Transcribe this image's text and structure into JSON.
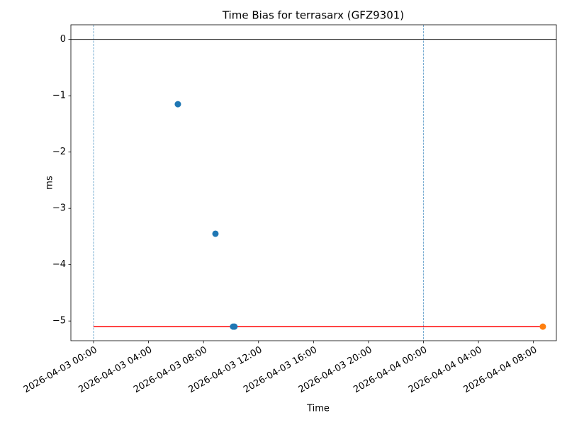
{
  "chart_data": {
    "type": "scatter",
    "title": "Time Bias for terrasarx (GFZ9301)",
    "x_label": "Time",
    "y_label": "ms",
    "xlim": [
      "2026-04-02 22:21",
      "2026-04-04 09:40"
    ],
    "ylim": [
      -5.35,
      0.26
    ],
    "xticks": [
      "2026-04-03 00:00",
      "2026-04-03 04:00",
      "2026-04-03 08:00",
      "2026-04-03 12:00",
      "2026-04-03 16:00",
      "2026-04-03 20:00",
      "2026-04-04 00:00",
      "2026-04-04 04:00",
      "2026-04-04 08:00"
    ],
    "yticks": [
      {
        "value": -5,
        "label": "−5"
      },
      {
        "value": -4,
        "label": "−4"
      },
      {
        "value": -3,
        "label": "−3"
      },
      {
        "value": -2,
        "label": "−2"
      },
      {
        "value": -1,
        "label": "−1"
      },
      0
    ],
    "series": [
      {
        "color": "#1f77b4",
        "x": [
          "2026-04-03 06:08",
          "2026-04-03 08:52",
          "2026-04-03 10:09",
          "2026-04-03 10:15"
        ],
        "values": [
          -1.15,
          -3.45,
          -5.1,
          -5.1
        ]
      },
      {
        "color": "#ff7f0e",
        "x": [
          "2026-04-04 08:41"
        ],
        "values": [
          -5.1
        ]
      }
    ],
    "reference_line": {
      "color": "#ff0000",
      "x": [
        "2026-04-03 00:00",
        "2026-04-04 08:41"
      ],
      "values": [
        -5.1,
        -5.1
      ]
    },
    "hline": {
      "value": 0,
      "color": "#000000"
    },
    "vlines": {
      "color": "#1f77b4",
      "x": [
        "2026-04-03 00:00",
        "2026-04-04 00:00"
      ]
    }
  }
}
